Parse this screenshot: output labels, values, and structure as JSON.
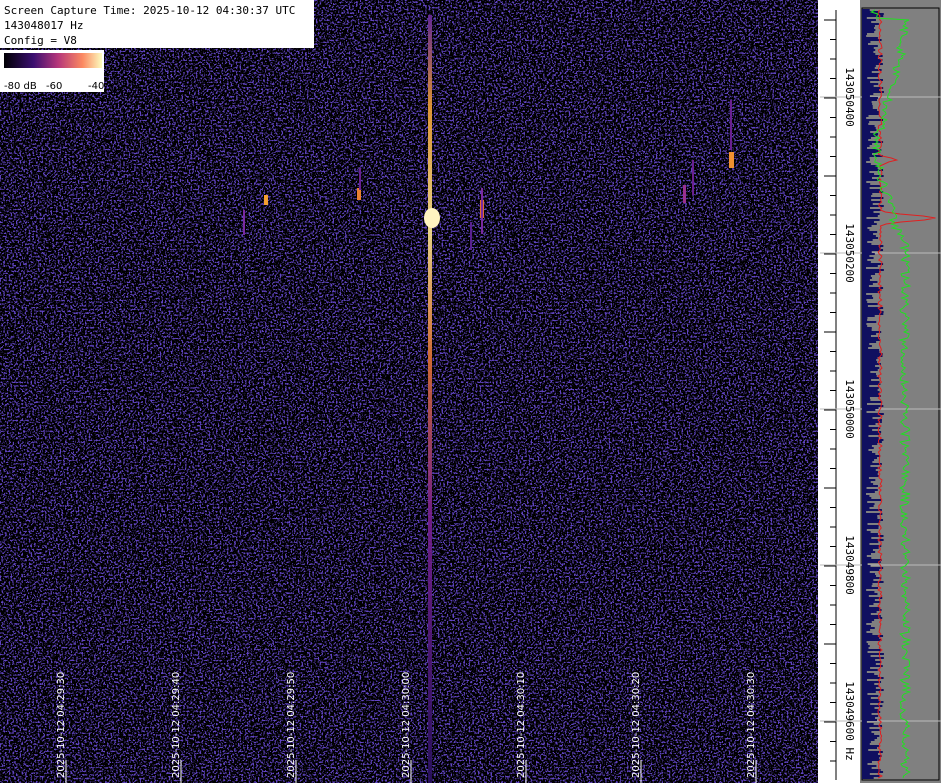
{
  "header": {
    "capture_time": "Screen Capture Time: 2025-10-12 04:30:37 UTC",
    "frequency": "143048017 Hz",
    "config": "Config = V8"
  },
  "colorbar": {
    "labels": [
      "-80 dB",
      "-60",
      "-40"
    ]
  },
  "time_axis": {
    "labels": [
      "2025-10-12 04:29:30",
      "2025-10-12 04:29:40",
      "2025-10-12 04:29:50",
      "2025-10-12 04:30:00",
      "2025-10-12 04:30:10",
      "2025-10-12 04:30:20",
      "2025-10-12 04:30:30"
    ]
  },
  "frequency_axis": {
    "labels": [
      "143050400",
      "143050200",
      "143050000",
      "143049800",
      "143049600 Hz"
    ]
  }
}
